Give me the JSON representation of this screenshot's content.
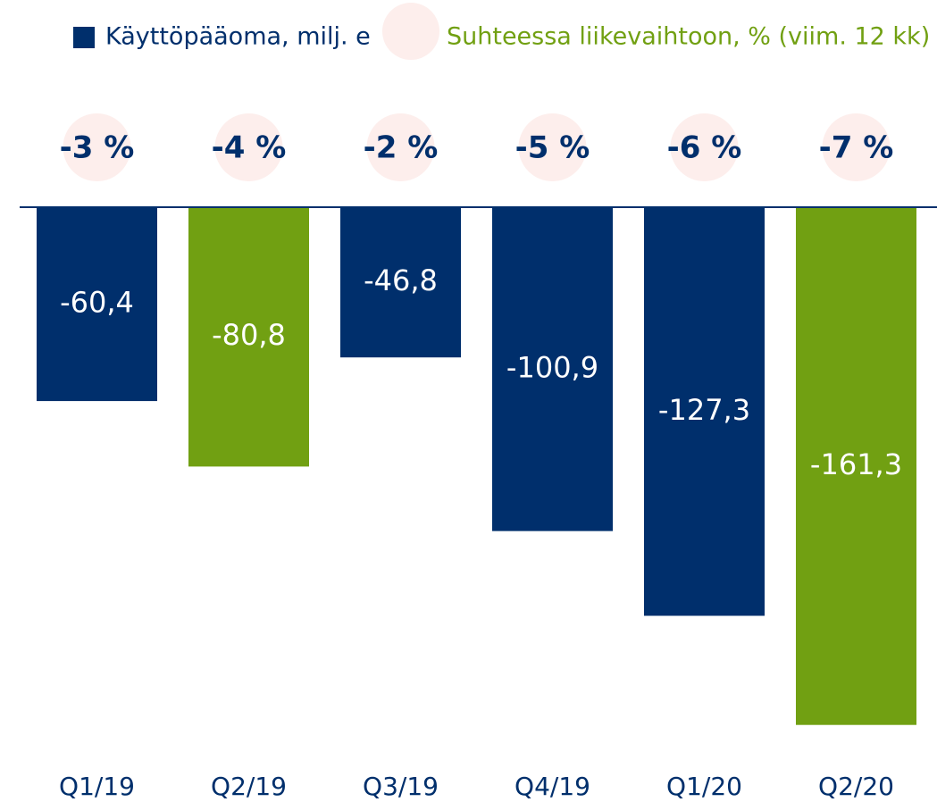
{
  "chart_data": {
    "type": "bar",
    "categories": [
      "Q1/19",
      "Q2/19",
      "Q3/19",
      "Q4/19",
      "Q1/20",
      "Q2/20"
    ],
    "series": [
      {
        "name": "Käyttöpääoma, milj. e",
        "color": "#002f6c",
        "colors": [
          "#002f6c",
          "#71a012",
          "#002f6c",
          "#002f6c",
          "#002f6c",
          "#71a012"
        ],
        "values": [
          -60.4,
          -80.8,
          -46.8,
          -100.9,
          -127.3,
          -161.3
        ],
        "value_labels": [
          "-60,4",
          "-80,8",
          "-46,8",
          "-100,9",
          "-127,3",
          "-161,3"
        ]
      },
      {
        "name": "Suhteessa liikevaihtoon, % (viim. 12 kk)",
        "color": "#fdeeec",
        "text_color": "#71a012",
        "values": [
          -3,
          -4,
          -2,
          -5,
          -6,
          -7
        ],
        "value_labels": [
          "-3 %",
          "-4 %",
          "-2 %",
          "-5 %",
          "-6 %",
          "-7 %"
        ]
      }
    ],
    "ylim": [
      -165,
      0
    ]
  }
}
